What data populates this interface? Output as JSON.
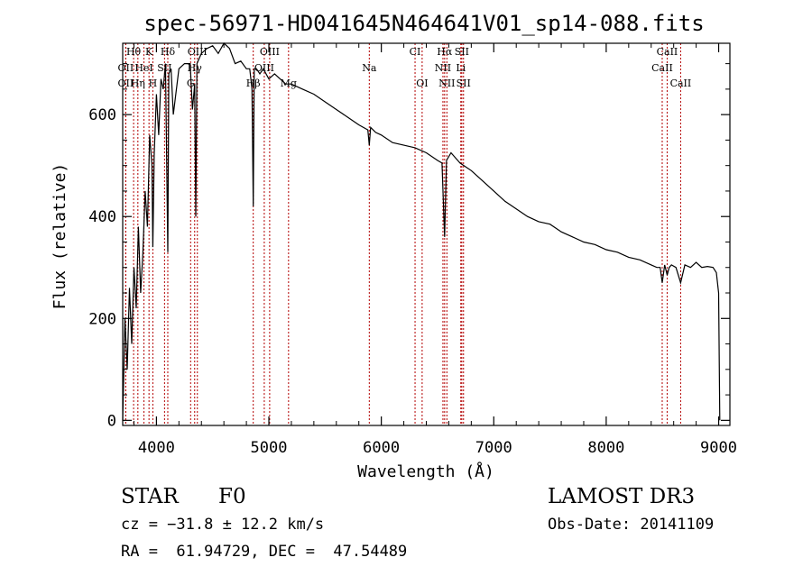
{
  "chart_data": {
    "type": "line",
    "title": "spec-56971-HD041645N464641V01_sp14-088.fits",
    "xlabel": "Wavelength (Å)",
    "ylabel": "Flux (relative)",
    "xlim": [
      3700,
      9100
    ],
    "ylim": [
      -10,
      740
    ],
    "xticks": [
      4000,
      5000,
      6000,
      7000,
      8000,
      9000
    ],
    "yticks": [
      0,
      200,
      400,
      600
    ],
    "series": [
      {
        "name": "spectrum",
        "x": [
          3700,
          3720,
          3740,
          3760,
          3780,
          3800,
          3820,
          3840,
          3860,
          3880,
          3900,
          3920,
          3940,
          3960,
          3968,
          3980,
          4000,
          4020,
          4040,
          4060,
          4080,
          4101,
          4110,
          4130,
          4150,
          4200,
          4250,
          4300,
          4320,
          4340,
          4350,
          4360,
          4380,
          4400,
          4450,
          4500,
          4550,
          4600,
          4650,
          4700,
          4750,
          4800,
          4830,
          4850,
          4861,
          4870,
          4890,
          4920,
          4950,
          5000,
          5050,
          5100,
          5150,
          5200,
          5300,
          5400,
          5500,
          5600,
          5700,
          5800,
          5880,
          5893,
          5905,
          5950,
          6000,
          6100,
          6200,
          6300,
          6400,
          6500,
          6540,
          6563,
          6580,
          6620,
          6700,
          6800,
          6900,
          7000,
          7100,
          7200,
          7300,
          7400,
          7500,
          7600,
          7700,
          7800,
          7900,
          8000,
          8100,
          8200,
          8300,
          8400,
          8450,
          8480,
          8498,
          8520,
          8542,
          8560,
          8580,
          8620,
          8662,
          8700,
          8750,
          8800,
          8850,
          8900,
          8950,
          8980,
          9000,
          9010
        ],
        "values": [
          0,
          200,
          100,
          260,
          150,
          300,
          220,
          380,
          250,
          330,
          450,
          380,
          560,
          500,
          340,
          520,
          640,
          560,
          670,
          650,
          700,
          330,
          680,
          690,
          600,
          690,
          700,
          700,
          610,
          660,
          400,
          700,
          710,
          720,
          730,
          735,
          720,
          740,
          730,
          700,
          705,
          690,
          690,
          650,
          420,
          690,
          690,
          680,
          690,
          670,
          680,
          670,
          660,
          660,
          650,
          640,
          625,
          610,
          595,
          580,
          570,
          540,
          575,
          565,
          560,
          545,
          540,
          535,
          525,
          510,
          505,
          360,
          510,
          525,
          505,
          490,
          470,
          450,
          430,
          415,
          400,
          390,
          385,
          370,
          360,
          350,
          345,
          335,
          330,
          320,
          315,
          305,
          300,
          300,
          270,
          305,
          285,
          300,
          305,
          300,
          270,
          305,
          300,
          310,
          300,
          302,
          300,
          290,
          250,
          0
        ]
      }
    ],
    "lines": [
      {
        "name": "OII",
        "x": 3727,
        "label_row": 2,
        "dx": 0
      },
      {
        "name": "Hθ",
        "x": 3797,
        "label_row": 0,
        "dx": 0
      },
      {
        "name": "OII",
        "x": 3727,
        "label_row": 1,
        "dx": 0
      },
      {
        "name": "Hη",
        "x": 3835,
        "label_row": 2,
        "dx": 0
      },
      {
        "name": "HeI",
        "x": 3889,
        "label_row": 1,
        "dx": 0
      },
      {
        "name": "K",
        "x": 3934,
        "label_row": 0,
        "dx": 0
      },
      {
        "name": "H",
        "x": 3968,
        "label_row": 2,
        "dx": 0
      },
      {
        "name": "SII",
        "x": 4072,
        "label_row": 1,
        "dx": 0
      },
      {
        "name": "Hδ",
        "x": 4101,
        "label_row": 0,
        "dx": 0
      },
      {
        "name": "G",
        "x": 4304,
        "label_row": 2,
        "dx": 0
      },
      {
        "name": "OIII",
        "x": 4364,
        "label_row": 0,
        "dx": 0
      },
      {
        "name": "Hγ",
        "x": 4340,
        "label_row": 1,
        "dx": 0
      },
      {
        "name": "Hβ",
        "x": 4861,
        "label_row": 2,
        "dx": 0
      },
      {
        "name": "OIII",
        "x": 4959,
        "label_row": 1,
        "dx": 0
      },
      {
        "name": "OIII",
        "x": 5007,
        "label_row": 0,
        "dx": 0
      },
      {
        "name": "Mg",
        "x": 5175,
        "label_row": 2,
        "dx": 0
      },
      {
        "name": "Na",
        "x": 5893,
        "label_row": 1,
        "dx": 0
      },
      {
        "name": "CI",
        "x": 6300,
        "label_row": 0,
        "dx": 0
      },
      {
        "name": "OI",
        "x": 6363,
        "label_row": 2,
        "dx": 0
      },
      {
        "name": "Hα",
        "x": 6563,
        "label_row": 0,
        "dx": 0
      },
      {
        "name": "NII",
        "x": 6548,
        "label_row": 1,
        "dx": 0
      },
      {
        "name": "NII",
        "x": 6583,
        "label_row": 2,
        "dx": 0
      },
      {
        "name": "SII",
        "x": 6716,
        "label_row": 0,
        "dx": 0
      },
      {
        "name": "Li",
        "x": 6707,
        "label_row": 1,
        "dx": 0
      },
      {
        "name": "SII",
        "x": 6731,
        "label_row": 2,
        "dx": 0
      },
      {
        "name": "CaII",
        "x": 8542,
        "label_row": 0,
        "dx": 0
      },
      {
        "name": "CaII",
        "x": 8498,
        "label_row": 1,
        "dx": 0
      },
      {
        "name": "CaII",
        "x": 8662,
        "label_row": 2,
        "dx": 0
      }
    ],
    "line_color": "#b30000"
  },
  "info": {
    "object_class": "STAR",
    "subclass": "F0",
    "survey": "LAMOST DR3",
    "cz": "cz = −31.8 ± 12.2 km/s",
    "obs_date": "Obs-Date: 20141109",
    "coords": "RA =  61.94729, DEC =  47.54489"
  }
}
